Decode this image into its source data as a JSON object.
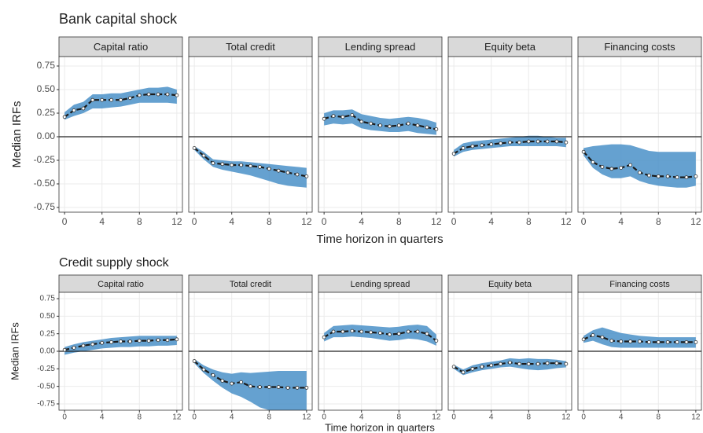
{
  "chart_data": [
    {
      "type": "line",
      "title": "Bank capital shock",
      "x_label": "Time horizon in quarters",
      "y_label": "Median IRFs",
      "xlim": [
        -0.6,
        12.6
      ],
      "ylim": [
        -0.8,
        0.85
      ],
      "xticks": [
        0,
        4,
        8,
        12
      ],
      "yticks": [
        0.75,
        {
          "value": 0.5,
          "label": "0.50"
        },
        0.25,
        {
          "value": 0,
          "label": "0.00"
        },
        -0.25,
        {
          "value": -0.5,
          "label": "-0.50"
        },
        -0.75
      ],
      "grid": true,
      "color": "#1a1a1a",
      "band_color": "#4a90c8",
      "x": [
        0,
        1,
        2,
        3,
        4,
        5,
        6,
        7,
        8,
        9,
        10,
        11,
        12
      ],
      "panels": [
        {
          "title": "Capital ratio",
          "values": [
            0.21,
            0.28,
            0.3,
            0.39,
            0.39,
            0.39,
            0.39,
            0.41,
            0.44,
            0.45,
            0.45,
            0.45,
            0.44
          ],
          "lower": [
            0.18,
            0.22,
            0.25,
            0.3,
            0.3,
            0.31,
            0.32,
            0.34,
            0.36,
            0.36,
            0.36,
            0.36,
            0.35
          ],
          "upper": [
            0.26,
            0.34,
            0.37,
            0.45,
            0.45,
            0.46,
            0.46,
            0.48,
            0.5,
            0.52,
            0.52,
            0.53,
            0.5
          ]
        },
        {
          "title": "Total credit",
          "values": [
            -0.12,
            -0.2,
            -0.28,
            -0.29,
            -0.3,
            -0.3,
            -0.31,
            -0.32,
            -0.34,
            -0.36,
            -0.38,
            -0.4,
            -0.42
          ],
          "lower": [
            -0.14,
            -0.24,
            -0.32,
            -0.35,
            -0.37,
            -0.39,
            -0.41,
            -0.44,
            -0.47,
            -0.5,
            -0.52,
            -0.53,
            -0.54
          ],
          "upper": [
            -0.1,
            -0.16,
            -0.24,
            -0.25,
            -0.26,
            -0.26,
            -0.27,
            -0.28,
            -0.29,
            -0.3,
            -0.31,
            -0.32,
            -0.33
          ]
        },
        {
          "title": "Lending spread",
          "values": [
            0.19,
            0.22,
            0.21,
            0.23,
            0.16,
            0.14,
            0.12,
            0.11,
            0.12,
            0.14,
            0.12,
            0.1,
            0.08
          ],
          "lower": [
            0.12,
            0.14,
            0.13,
            0.14,
            0.09,
            0.07,
            0.06,
            0.05,
            0.05,
            0.06,
            0.04,
            0.03,
            0.02
          ],
          "upper": [
            0.25,
            0.28,
            0.28,
            0.29,
            0.24,
            0.22,
            0.2,
            0.19,
            0.2,
            0.21,
            0.2,
            0.18,
            0.15
          ]
        },
        {
          "title": "Equity beta",
          "values": [
            -0.18,
            -0.12,
            -0.1,
            -0.09,
            -0.08,
            -0.07,
            -0.06,
            -0.06,
            -0.05,
            -0.05,
            -0.05,
            -0.05,
            -0.06
          ],
          "lower": [
            -0.21,
            -0.16,
            -0.14,
            -0.13,
            -0.12,
            -0.11,
            -0.1,
            -0.1,
            -0.1,
            -0.1,
            -0.1,
            -0.1,
            -0.11
          ],
          "upper": [
            -0.14,
            -0.07,
            -0.05,
            -0.04,
            -0.03,
            -0.02,
            -0.01,
            0,
            0.01,
            0.01,
            0,
            -0.01,
            -0.01
          ]
        },
        {
          "title": "Financing costs",
          "values": [
            -0.16,
            -0.27,
            -0.32,
            -0.34,
            -0.33,
            -0.3,
            -0.38,
            -0.41,
            -0.42,
            -0.42,
            -0.43,
            -0.43,
            -0.42
          ],
          "lower": [
            -0.2,
            -0.33,
            -0.4,
            -0.44,
            -0.44,
            -0.42,
            -0.47,
            -0.5,
            -0.52,
            -0.53,
            -0.54,
            -0.54,
            -0.52
          ],
          "upper": [
            -0.12,
            -0.1,
            -0.09,
            -0.08,
            -0.08,
            -0.09,
            -0.12,
            -0.15,
            -0.16,
            -0.16,
            -0.16,
            -0.16,
            -0.16
          ]
        }
      ]
    },
    {
      "type": "line",
      "title": "Credit supply shock",
      "x_label": "Time horizon in quarters",
      "y_label": "Median IRFs",
      "xlim": [
        -0.6,
        12.6
      ],
      "ylim": [
        -0.84,
        0.84
      ],
      "xticks": [
        0,
        4,
        8,
        12
      ],
      "yticks": [
        0.75,
        {
          "value": 0.5,
          "label": "0.50"
        },
        0.25,
        {
          "value": 0,
          "label": "0.00"
        },
        -0.25,
        {
          "value": -0.5,
          "label": "-0.50"
        },
        -0.75
      ],
      "grid": true,
      "color": "#1a1a1a",
      "band_color": "#4a90c8",
      "x": [
        0,
        1,
        2,
        3,
        4,
        5,
        6,
        7,
        8,
        9,
        10,
        11,
        12
      ],
      "panels": [
        {
          "title": "Capital ratio",
          "values": [
            0.02,
            0.05,
            0.08,
            0.1,
            0.12,
            0.13,
            0.14,
            0.14,
            0.15,
            0.15,
            0.16,
            0.16,
            0.17
          ],
          "lower": [
            -0.05,
            -0.02,
            0,
            0.02,
            0.04,
            0.05,
            0.06,
            0.06,
            0.07,
            0.07,
            0.08,
            0.08,
            0.09
          ],
          "upper": [
            0.06,
            0.1,
            0.13,
            0.15,
            0.17,
            0.19,
            0.2,
            0.21,
            0.22,
            0.22,
            0.22,
            0.22,
            0.22
          ]
        },
        {
          "title": "Total credit",
          "values": [
            -0.14,
            -0.26,
            -0.34,
            -0.42,
            -0.46,
            -0.44,
            -0.5,
            -0.51,
            -0.51,
            -0.51,
            -0.52,
            -0.52,
            -0.52
          ],
          "lower": [
            -0.17,
            -0.31,
            -0.42,
            -0.52,
            -0.6,
            -0.65,
            -0.72,
            -0.8,
            -0.84,
            -0.84,
            -0.84,
            -0.84,
            -0.84
          ],
          "upper": [
            -0.11,
            -0.2,
            -0.26,
            -0.3,
            -0.32,
            -0.3,
            -0.31,
            -0.3,
            -0.29,
            -0.28,
            -0.28,
            -0.28,
            -0.28
          ]
        },
        {
          "title": "Lending spread",
          "values": [
            0.2,
            0.28,
            0.28,
            0.29,
            0.28,
            0.27,
            0.26,
            0.24,
            0.25,
            0.28,
            0.28,
            0.25,
            0.15
          ],
          "lower": [
            0.14,
            0.2,
            0.2,
            0.21,
            0.2,
            0.19,
            0.17,
            0.15,
            0.16,
            0.18,
            0.17,
            0.14,
            0.08
          ],
          "upper": [
            0.26,
            0.36,
            0.37,
            0.38,
            0.37,
            0.36,
            0.35,
            0.34,
            0.35,
            0.37,
            0.38,
            0.36,
            0.24
          ]
        },
        {
          "title": "Equity beta",
          "values": [
            -0.22,
            -0.3,
            -0.25,
            -0.22,
            -0.2,
            -0.18,
            -0.16,
            -0.18,
            -0.18,
            -0.18,
            -0.17,
            -0.17,
            -0.18
          ],
          "lower": [
            -0.25,
            -0.34,
            -0.3,
            -0.27,
            -0.25,
            -0.23,
            -0.22,
            -0.24,
            -0.26,
            -0.27,
            -0.26,
            -0.24,
            -0.23
          ],
          "upper": [
            -0.19,
            -0.26,
            -0.2,
            -0.17,
            -0.15,
            -0.13,
            -0.1,
            -0.11,
            -0.1,
            -0.11,
            -0.11,
            -0.12,
            -0.14
          ]
        },
        {
          "title": "Financing costs",
          "values": [
            0.17,
            0.23,
            0.2,
            0.15,
            0.14,
            0.14,
            0.14,
            0.13,
            0.13,
            0.13,
            0.13,
            0.13,
            0.13
          ],
          "lower": [
            0.12,
            0.15,
            0.1,
            0.06,
            0.05,
            0.05,
            0.05,
            0.05,
            0.05,
            0.05,
            0.05,
            0.05,
            0.05
          ],
          "upper": [
            0.22,
            0.3,
            0.34,
            0.3,
            0.26,
            0.24,
            0.22,
            0.21,
            0.2,
            0.2,
            0.2,
            0.2,
            0.2
          ]
        }
      ]
    }
  ]
}
